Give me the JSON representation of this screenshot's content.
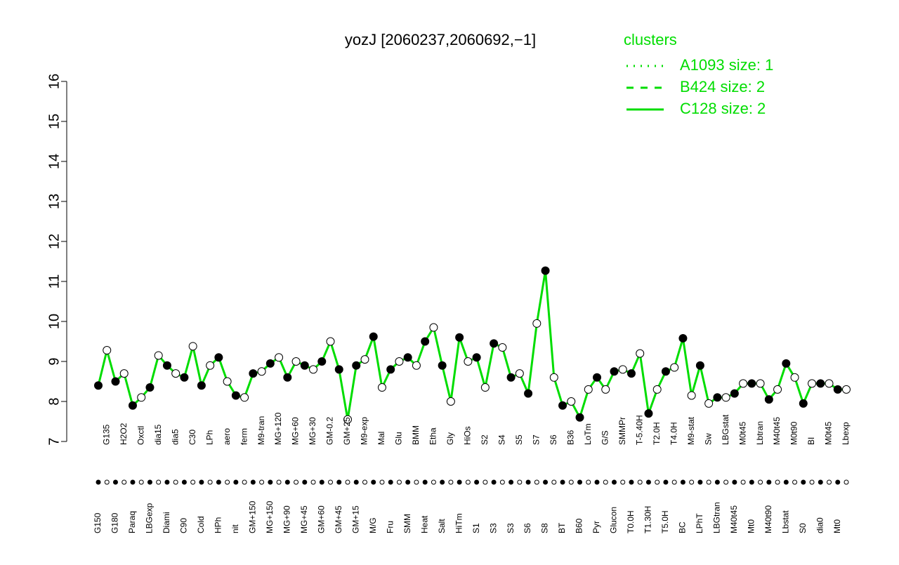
{
  "chart_data": {
    "type": "line",
    "title": "yozJ [2060237,2060692,−1]",
    "categories": [
      "G150",
      "G135",
      "G180",
      "H2O2",
      "Paraq",
      "Oxctl",
      "LBGexp",
      "dia15",
      "Diami",
      "dia5",
      "C90",
      "C30",
      "Cold",
      "LPh",
      "HPh",
      "aero",
      "nit",
      "ferm",
      "GM+150",
      "M9-tran",
      "MG+150",
      "MG+120",
      "MG+90",
      "MG+60",
      "MG+45",
      "MG+30",
      "GM+60",
      "GM-0.2",
      "GM+45",
      "GM+25",
      "GM+15",
      "M9-exp",
      "M/G",
      "Mal",
      "Fru",
      "Glu",
      "SMM",
      "BMM",
      "Heat",
      "Etha",
      "Salt",
      "Gly",
      "HiTm",
      "HiOs",
      "S1",
      "S2",
      "S3",
      "S4",
      "S3",
      "S5",
      "S6",
      "S7",
      "S8",
      "S6",
      "BT",
      "B36",
      "B60",
      "LoTm",
      "Pyr",
      "G/S",
      "Glucon",
      "SMMPr",
      "T0.0H",
      "T-5.40H",
      "T1.30H",
      "T2.0H",
      "T5.0H",
      "T4.0H",
      "BC",
      "M9-stat",
      "LPhT",
      "Sw",
      "LBGtran",
      "LBGstat",
      "M40t45",
      "M0t45",
      "Mt0",
      "Lbtran",
      "M40t90",
      "M40t45",
      "Lbstat",
      "M0t90",
      "S0",
      "BI",
      "dia0",
      "M0t45",
      "Mt0",
      "Lbexp"
    ],
    "values": [
      8.4,
      9.28,
      8.5,
      8.7,
      7.9,
      8.1,
      8.35,
      9.15,
      8.9,
      8.7,
      8.6,
      9.38,
      8.4,
      8.9,
      9.1,
      8.5,
      8.15,
      8.1,
      8.7,
      8.75,
      8.95,
      9.1,
      8.6,
      9.0,
      8.9,
      8.8,
      9.0,
      9.5,
      8.8,
      7.55,
      8.9,
      9.05,
      9.62,
      8.35,
      8.8,
      9.0,
      9.1,
      8.9,
      9.5,
      9.85,
      8.9,
      8.0,
      9.6,
      9.0,
      9.1,
      8.35,
      9.45,
      9.35,
      8.6,
      8.7,
      8.2,
      9.95,
      11.27,
      8.6,
      7.9,
      8.0,
      7.6,
      8.3,
      8.6,
      8.3,
      8.75,
      8.8,
      8.7,
      9.2,
      7.7,
      8.3,
      8.75,
      8.85,
      9.58,
      8.15,
      8.9,
      7.95,
      8.1,
      8.1,
      8.2,
      8.45,
      8.45,
      8.45,
      8.05,
      8.3,
      8.95,
      8.6,
      7.95,
      8.45,
      8.45,
      8.45,
      8.3,
      8.3
    ],
    "color": "#00dd00",
    "ylim": [
      7,
      16
    ],
    "yticks": [
      7,
      8,
      9,
      10,
      11,
      12,
      13,
      14,
      15,
      16
    ],
    "legend": {
      "title": "clusters",
      "position": "top-right",
      "entries": [
        {
          "name": "A1093 size: 1",
          "linestyle": "dotted"
        },
        {
          "name": "B424 size: 2",
          "linestyle": "dashed"
        },
        {
          "name": "C128 size: 2",
          "linestyle": "solid"
        }
      ]
    }
  }
}
